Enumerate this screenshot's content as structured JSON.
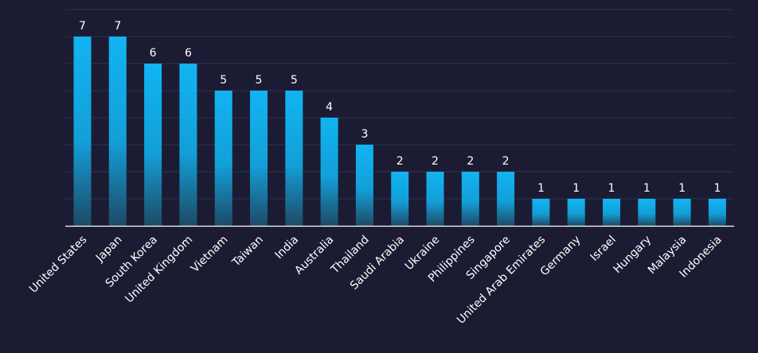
{
  "chart_data": {
    "type": "bar",
    "categories": [
      "United States",
      "Japan",
      "South Korea",
      "United Kingdom",
      "Vietnam",
      "Taiwan",
      "India",
      "Australia",
      "Thailand",
      "Saudi Arabia",
      "Ukraine",
      "Philippines",
      "Singapore",
      "United Arab Emirates",
      "Germany",
      "Israel",
      "Hungary",
      "Malaysia",
      "Indonesia"
    ],
    "values": [
      7,
      7,
      6,
      6,
      5,
      5,
      5,
      4,
      3,
      2,
      2,
      2,
      2,
      1,
      1,
      1,
      1,
      1,
      1
    ],
    "title": "",
    "xlabel": "",
    "ylabel": "",
    "ylim": [
      0,
      8
    ],
    "grid": true,
    "data_labels": true,
    "colors": {
      "background": "#1b1c33",
      "bar_top": "#12b4f2",
      "bar_bottom": "#1e4a66",
      "grid": "#2e3052",
      "axis": "#ffffff",
      "text": "#ffffff"
    }
  }
}
